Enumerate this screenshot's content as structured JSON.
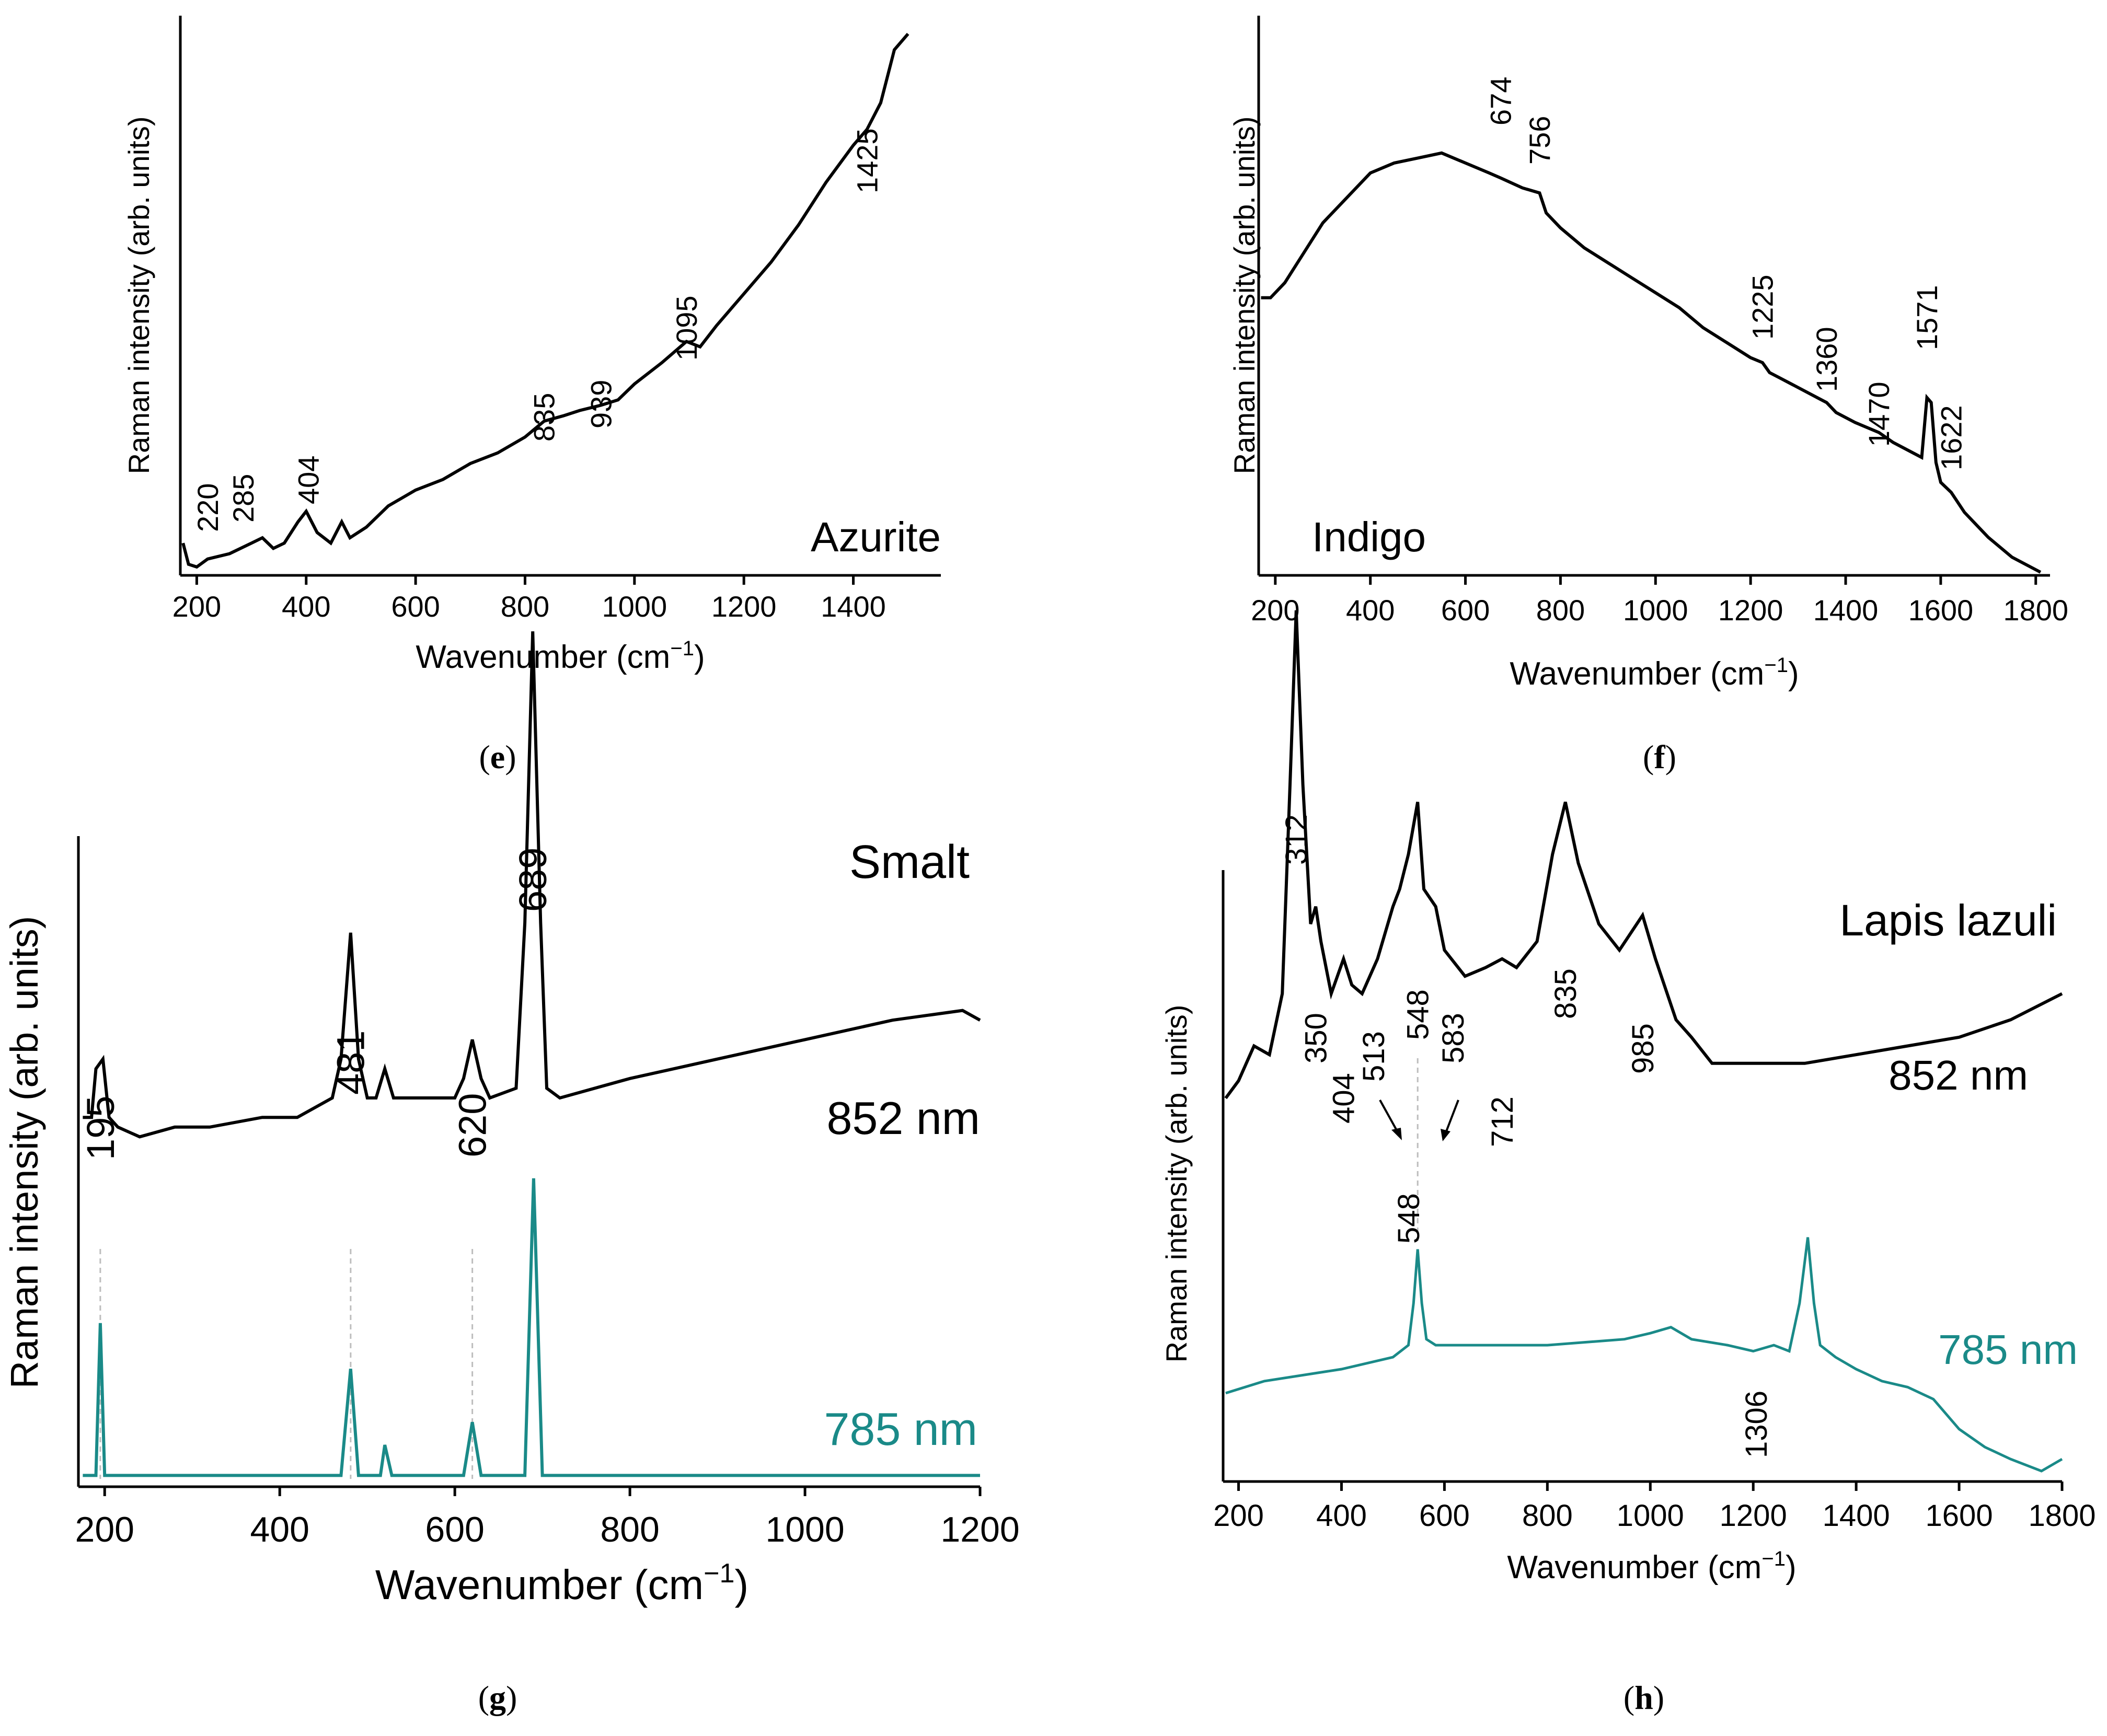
{
  "figure": {
    "colors": {
      "black": "#000000",
      "teal": "#1a8a88",
      "guide": "#bdbdbd"
    }
  },
  "chart_data": [
    {
      "id": "e",
      "type": "line",
      "caption_open": "(",
      "caption": "e",
      "caption_close": ")",
      "label": "Azurite",
      "xlabel": "Wavenumber (cm",
      "xlabel_sup": "−1",
      "xlabel_close": ")",
      "ylabel": "Raman intensity (arb. units)",
      "xlim": [
        170,
        1560
      ],
      "ylim": [
        0,
        100
      ],
      "xticks": [
        200,
        400,
        600,
        800,
        1000,
        1200,
        1400
      ],
      "peaks": [
        220,
        285,
        404,
        835,
        939,
        1095,
        1425
      ],
      "series": [
        {
          "name": "Azurite",
          "color": "#000000",
          "points": [
            [
              175,
              5
            ],
            [
              185,
              1
            ],
            [
              200,
              0.5
            ],
            [
              220,
              2
            ],
            [
              260,
              3
            ],
            [
              300,
              5
            ],
            [
              320,
              6
            ],
            [
              340,
              4
            ],
            [
              360,
              5
            ],
            [
              385,
              9
            ],
            [
              400,
              11
            ],
            [
              420,
              7
            ],
            [
              445,
              5
            ],
            [
              465,
              9
            ],
            [
              480,
              6
            ],
            [
              510,
              8
            ],
            [
              550,
              12
            ],
            [
              600,
              15
            ],
            [
              650,
              17
            ],
            [
              700,
              20
            ],
            [
              750,
              22
            ],
            [
              800,
              25
            ],
            [
              835,
              28
            ],
            [
              870,
              29
            ],
            [
              900,
              30
            ],
            [
              939,
              31
            ],
            [
              970,
              32
            ],
            [
              1000,
              35
            ],
            [
              1050,
              39
            ],
            [
              1095,
              43
            ],
            [
              1120,
              42
            ],
            [
              1150,
              46
            ],
            [
              1200,
              52
            ],
            [
              1250,
              58
            ],
            [
              1300,
              65
            ],
            [
              1350,
              73
            ],
            [
              1400,
              80
            ],
            [
              1425,
              83
            ],
            [
              1450,
              88
            ],
            [
              1465,
              94
            ],
            [
              1475,
              98
            ],
            [
              1500,
              101
            ]
          ]
        }
      ]
    },
    {
      "id": "f",
      "type": "line",
      "caption_open": "(",
      "caption": "f",
      "caption_close": ")",
      "label": "Indigo",
      "xlabel": "Wavenumber (cm",
      "xlabel_sup": "−1",
      "xlabel_close": ")",
      "ylabel": "Raman intensity (arb. units)",
      "xlim": [
        165,
        1830
      ],
      "ylim": [
        0,
        100
      ],
      "xticks": [
        200,
        400,
        600,
        800,
        1000,
        1200,
        1400,
        1600,
        1800
      ],
      "peaks": [
        674,
        756,
        1225,
        1360,
        1470,
        1571,
        1622
      ],
      "series": [
        {
          "name": "Indigo",
          "color": "#000000",
          "points": [
            [
              170,
              55
            ],
            [
              190,
              55
            ],
            [
              220,
              58
            ],
            [
              260,
              64
            ],
            [
              300,
              70
            ],
            [
              350,
              75
            ],
            [
              400,
              80
            ],
            [
              450,
              82
            ],
            [
              500,
              83
            ],
            [
              550,
              84
            ],
            [
              600,
              82
            ],
            [
              650,
              80
            ],
            [
              674,
              79
            ],
            [
              720,
              77
            ],
            [
              756,
              76
            ],
            [
              770,
              72
            ],
            [
              800,
              69
            ],
            [
              850,
              65
            ],
            [
              900,
              62
            ],
            [
              950,
              59
            ],
            [
              1000,
              56
            ],
            [
              1050,
              53
            ],
            [
              1100,
              49
            ],
            [
              1150,
              46
            ],
            [
              1200,
              43
            ],
            [
              1225,
              42
            ],
            [
              1240,
              40
            ],
            [
              1260,
              39
            ],
            [
              1300,
              37
            ],
            [
              1340,
              35
            ],
            [
              1360,
              34
            ],
            [
              1380,
              32
            ],
            [
              1420,
              30
            ],
            [
              1470,
              28
            ],
            [
              1500,
              26
            ],
            [
              1540,
              24
            ],
            [
              1560,
              23
            ],
            [
              1571,
              35
            ],
            [
              1580,
              34
            ],
            [
              1590,
              22
            ],
            [
              1600,
              18
            ],
            [
              1622,
              16
            ],
            [
              1650,
              12
            ],
            [
              1700,
              7
            ],
            [
              1750,
              3
            ],
            [
              1810,
              0
            ]
          ]
        }
      ]
    },
    {
      "id": "g",
      "type": "line",
      "caption_open": "(",
      "caption": "g",
      "caption_close": ")",
      "label": "Smalt",
      "xlabel": "Wavenumber (cm",
      "xlabel_sup": "−1",
      "xlabel_close": ")",
      "ylabel": "Raman intensity (arb. units)",
      "xlim": [
        170,
        1200
      ],
      "ylim": [
        0,
        100
      ],
      "xticks": [
        200,
        400,
        600,
        800,
        1000,
        1200
      ],
      "peaks": [
        195,
        481,
        620,
        689
      ],
      "guide_lines": [
        195,
        481,
        620
      ],
      "series": [
        {
          "name": "852 nm",
          "color": "#000000",
          "points": [
            [
              175,
              38
            ],
            [
              185,
              38
            ],
            [
              190,
              43
            ],
            [
              198,
              44
            ],
            [
              205,
              38
            ],
            [
              215,
              37
            ],
            [
              240,
              36
            ],
            [
              280,
              37
            ],
            [
              320,
              37
            ],
            [
              380,
              38
            ],
            [
              420,
              38
            ],
            [
              460,
              40
            ],
            [
              470,
              44
            ],
            [
              481,
              57
            ],
            [
              490,
              44
            ],
            [
              500,
              40
            ],
            [
              510,
              40
            ],
            [
              520,
              43
            ],
            [
              530,
              40
            ],
            [
              560,
              40
            ],
            [
              600,
              40
            ],
            [
              610,
              42
            ],
            [
              620,
              46
            ],
            [
              630,
              42
            ],
            [
              640,
              40
            ],
            [
              670,
              41
            ],
            [
              680,
              58
            ],
            [
              689,
              88
            ],
            [
              698,
              58
            ],
            [
              705,
              41
            ],
            [
              720,
              40
            ],
            [
              800,
              42
            ],
            [
              900,
              44
            ],
            [
              1000,
              46
            ],
            [
              1100,
              48
            ],
            [
              1180,
              49
            ],
            [
              1200,
              48
            ]
          ]
        },
        {
          "name": "785 nm",
          "color": "#1a8a88",
          "points": [
            [
              175,
              1
            ],
            [
              190,
              1
            ],
            [
              195,
              21
            ],
            [
              200,
              1
            ],
            [
              300,
              1
            ],
            [
              470,
              1
            ],
            [
              481,
              15
            ],
            [
              490,
              1
            ],
            [
              515,
              1
            ],
            [
              520,
              5
            ],
            [
              528,
              1
            ],
            [
              610,
              1
            ],
            [
              620,
              8
            ],
            [
              630,
              1
            ],
            [
              680,
              1
            ],
            [
              690,
              40
            ],
            [
              700,
              1
            ],
            [
              800,
              1
            ],
            [
              1000,
              1
            ],
            [
              1200,
              1
            ]
          ]
        }
      ]
    },
    {
      "id": "h",
      "type": "line",
      "caption_open": "(",
      "caption": "h",
      "caption_close": ")",
      "label": "Lapis lazuli",
      "xlabel": "Wavenumber (cm",
      "xlabel_sup": "−1",
      "xlabel_close": ")",
      "ylabel": "Raman intensity (arb. units)",
      "xlim": [
        170,
        1800
      ],
      "ylim": [
        0,
        100
      ],
      "xticks": [
        200,
        400,
        600,
        800,
        1000,
        1200,
        1400,
        1600,
        1800
      ],
      "peaks": [
        312,
        350,
        404,
        513,
        548,
        583,
        712,
        835,
        985,
        1306
      ],
      "guide_lines": [
        548
      ],
      "series": [
        {
          "name": "852 nm",
          "color": "#000000",
          "points": [
            [
              175,
              44
            ],
            [
              200,
              46
            ],
            [
              230,
              50
            ],
            [
              260,
              49
            ],
            [
              285,
              56
            ],
            [
              300,
              80
            ],
            [
              312,
              100
            ],
            [
              325,
              80
            ],
            [
              340,
              64
            ],
            [
              350,
              66
            ],
            [
              360,
              62
            ],
            [
              380,
              56
            ],
            [
              404,
              60
            ],
            [
              420,
              57
            ],
            [
              440,
              56
            ],
            [
              470,
              60
            ],
            [
              500,
              66
            ],
            [
              513,
              68
            ],
            [
              530,
              72
            ],
            [
              548,
              78
            ],
            [
              560,
              68
            ],
            [
              583,
              66
            ],
            [
              600,
              61
            ],
            [
              640,
              58
            ],
            [
              680,
              59
            ],
            [
              712,
              60
            ],
            [
              740,
              59
            ],
            [
              780,
              62
            ],
            [
              810,
              72
            ],
            [
              835,
              78
            ],
            [
              860,
              71
            ],
            [
              900,
              64
            ],
            [
              940,
              61
            ],
            [
              985,
              65
            ],
            [
              1010,
              60
            ],
            [
              1050,
              53
            ],
            [
              1080,
              51
            ],
            [
              1120,
              48
            ],
            [
              1200,
              48
            ],
            [
              1300,
              48
            ],
            [
              1400,
              49
            ],
            [
              1500,
              50
            ],
            [
              1600,
              51
            ],
            [
              1700,
              53
            ],
            [
              1800,
              56
            ]
          ]
        },
        {
          "name": "785 nm",
          "color": "#1a8a88",
          "points": [
            [
              175,
              13
            ],
            [
              250,
              15
            ],
            [
              400,
              17
            ],
            [
              500,
              19
            ],
            [
              530,
              21
            ],
            [
              540,
              28
            ],
            [
              548,
              37
            ],
            [
              556,
              28
            ],
            [
              565,
              22
            ],
            [
              583,
              21
            ],
            [
              650,
              21
            ],
            [
              800,
              21
            ],
            [
              950,
              22
            ],
            [
              1000,
              23
            ],
            [
              1040,
              24
            ],
            [
              1080,
              22
            ],
            [
              1150,
              21
            ],
            [
              1200,
              20
            ],
            [
              1240,
              21
            ],
            [
              1270,
              20
            ],
            [
              1290,
              28
            ],
            [
              1306,
              39
            ],
            [
              1318,
              28
            ],
            [
              1330,
              21
            ],
            [
              1360,
              19
            ],
            [
              1400,
              17
            ],
            [
              1450,
              15
            ],
            [
              1500,
              14
            ],
            [
              1550,
              12
            ],
            [
              1600,
              7
            ],
            [
              1650,
              4
            ],
            [
              1700,
              2
            ],
            [
              1760,
              0
            ],
            [
              1800,
              2
            ]
          ]
        }
      ]
    }
  ]
}
